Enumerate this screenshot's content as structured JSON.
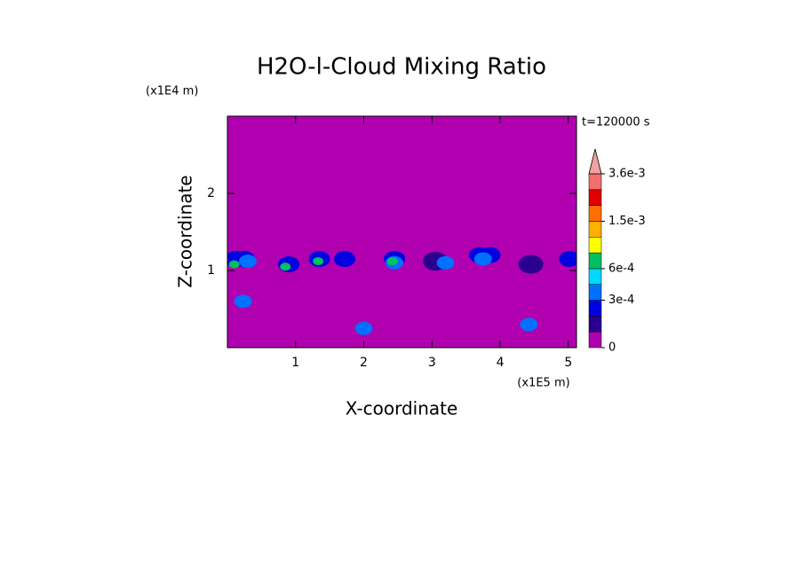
{
  "chart_data": {
    "type": "contour",
    "title": "H2O-l-Cloud Mixing Ratio",
    "x_label": "X-coordinate",
    "y_label": "Z-coordinate",
    "x_unit": "(x1E5 m)",
    "y_unit": "(x1E4 m)",
    "annotation": "t=120000 s",
    "xlim": [
      0,
      5.12
    ],
    "ylim": [
      0,
      3
    ],
    "xticks": [
      1,
      2,
      3,
      4,
      5
    ],
    "yticks": [
      1,
      2
    ],
    "levels": [
      0,
      0.0001,
      0.0002,
      0.0003,
      0.00045,
      0.0006,
      0.0009,
      0.0012,
      0.0015,
      0.0022,
      0.0029,
      0.0036
    ],
    "level_colors": [
      "#b000b0",
      "#2a0090",
      "#0000e0",
      "#0070ff",
      "#00d8ff",
      "#00c060",
      "#ffff00",
      "#ffb000",
      "#ff7000",
      "#e00000",
      "#f07070",
      "#f4a0a0"
    ],
    "level_ticks": [
      0,
      {
        "value": 0.0003,
        "label": "3e-4"
      },
      {
        "value": 0.0006,
        "label": "6e-4"
      },
      {
        "value": 0.0015,
        "label": "1.5e-3"
      },
      {
        "value": 0.0036,
        "label": "3.6e-3"
      }
    ],
    "points": {
      "x": [
        0.12,
        0.25,
        0.1,
        0.3,
        0.9,
        0.85,
        1.35,
        1.33,
        1.72,
        2.45,
        2.45,
        2.42,
        3.05,
        3.2,
        3.7,
        3.85,
        3.75,
        4.45,
        5.02,
        0.23,
        2.0,
        4.42
      ],
      "z": [
        1.15,
        1.15,
        1.08,
        1.12,
        1.08,
        1.05,
        1.15,
        1.12,
        1.15,
        1.15,
        1.1,
        1.12,
        1.12,
        1.1,
        1.2,
        1.2,
        1.15,
        1.08,
        1.15,
        0.6,
        0.25,
        0.3
      ],
      "values": [
        0.0002,
        0.0002,
        0.0006,
        0.0004,
        0.0002,
        0.0006,
        0.0002,
        0.0006,
        0.0002,
        0.0002,
        0.0004,
        0.0006,
        0.0001,
        0.0004,
        0.0002,
        0.0002,
        0.0004,
        0.0001,
        0.0002,
        0.0003,
        0.0003,
        0.0004
      ]
    }
  }
}
